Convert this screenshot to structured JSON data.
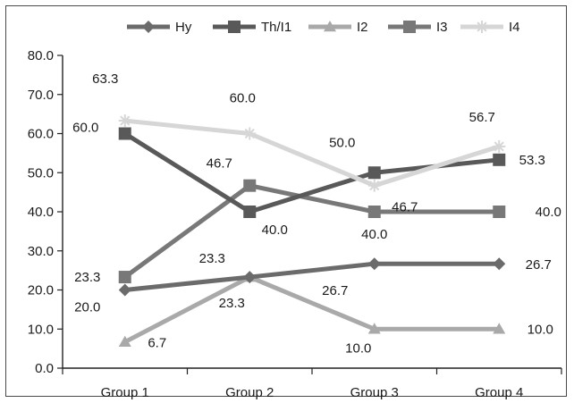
{
  "chart_data": {
    "type": "line",
    "categories": [
      "Group 1",
      "Group 2",
      "Group 3",
      "Group 4"
    ],
    "ylim": [
      0,
      80
    ],
    "yticks": [
      0,
      10,
      20,
      30,
      40,
      50,
      60,
      70,
      80
    ],
    "ytick_labels": [
      "0.0",
      "10.0",
      "20.0",
      "30.0",
      "40.0",
      "50.0",
      "60.0",
      "70.0",
      "80.0"
    ],
    "grid": false,
    "legend_position": "top",
    "series": [
      {
        "name": "Hy",
        "values": [
          20.0,
          23.3,
          26.7,
          26.7
        ],
        "labels": [
          "20.0",
          "23.3",
          "26.7",
          "26.7"
        ],
        "color": "#6b6b6b",
        "marker": "diamond"
      },
      {
        "name": "Th/I1",
        "values": [
          60.0,
          40.0,
          50.0,
          53.3
        ],
        "labels": [
          "60.0",
          "40.0",
          "50.0",
          "53.3"
        ],
        "color": "#595959",
        "marker": "square"
      },
      {
        "name": "I2",
        "values": [
          6.7,
          23.3,
          10.0,
          10.0
        ],
        "labels": [
          "6.7",
          "23.3",
          "10.0",
          "10.0"
        ],
        "color": "#a9a9a9",
        "marker": "triangle"
      },
      {
        "name": "I3",
        "values": [
          23.3,
          46.7,
          40.0,
          40.0
        ],
        "labels": [
          "23.3",
          "46.7",
          "40.0",
          "40.0"
        ],
        "color": "#787878",
        "marker": "square"
      },
      {
        "name": "I4",
        "values": [
          63.3,
          60.0,
          46.7,
          56.7
        ],
        "labels": [
          "63.3",
          "60.0",
          "46.7",
          "56.7"
        ],
        "color": "#d6d6d6",
        "marker": "star"
      }
    ]
  }
}
